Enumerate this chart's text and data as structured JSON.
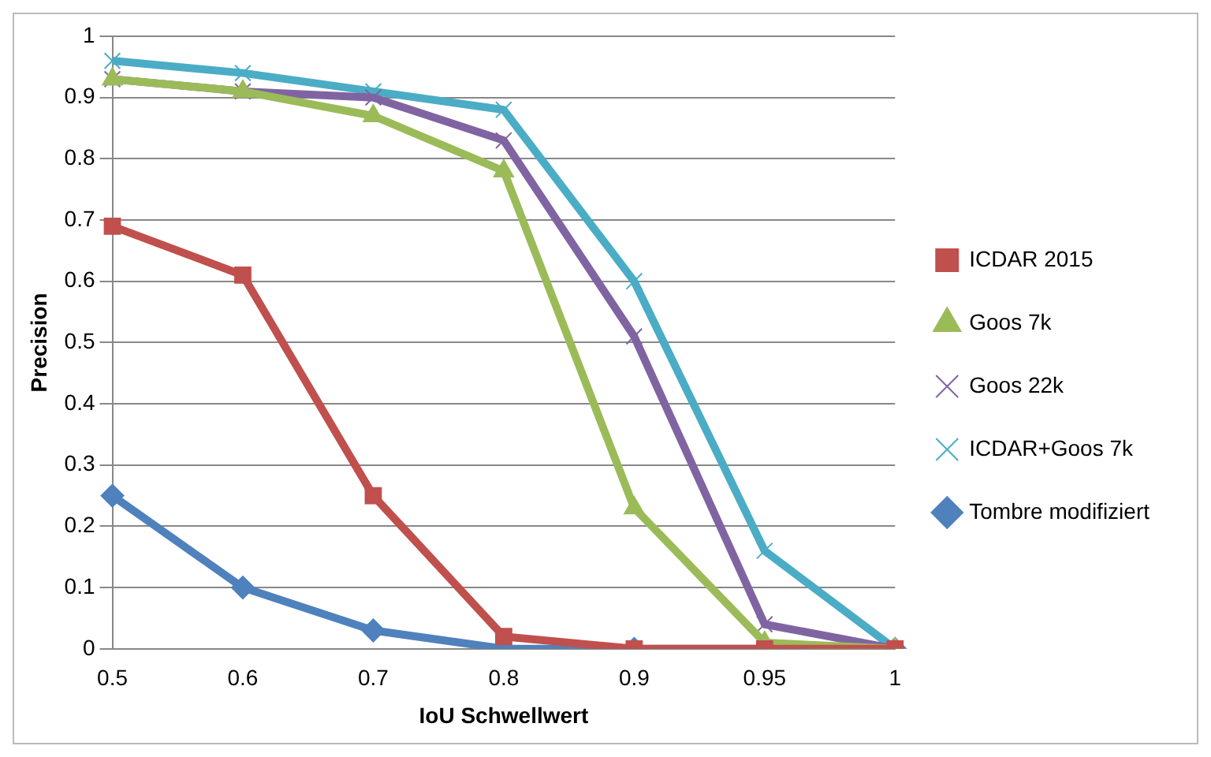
{
  "chart_data": {
    "type": "line",
    "xlabel": "IoU Schwellwert",
    "ylabel": "Precision",
    "categories": [
      "0.5",
      "0.6",
      "0.7",
      "0.8",
      "0.9",
      "0.95",
      "1"
    ],
    "series": [
      {
        "name": "ICDAR 2015",
        "color": "#c0504d",
        "marker": "square",
        "values": [
          0.69,
          0.61,
          0.25,
          0.02,
          0,
          0,
          0
        ]
      },
      {
        "name": "Goos 7k",
        "color": "#9bbb59",
        "marker": "triangle",
        "values": [
          0.93,
          0.91,
          0.87,
          0.78,
          0.23,
          0.01,
          0
        ]
      },
      {
        "name": "Goos 22k",
        "color": "#8064a2",
        "marker": "cross",
        "values": [
          0.93,
          0.91,
          0.9,
          0.83,
          0.51,
          0.04,
          0
        ]
      },
      {
        "name": "ICDAR+Goos 7k",
        "color": "#4bacc6",
        "marker": "cross",
        "values": [
          0.96,
          0.94,
          0.91,
          0.88,
          0.6,
          0.16,
          0
        ]
      },
      {
        "name": "Tombre modifiziert",
        "color": "#4f81bd",
        "marker": "diamond",
        "values": [
          0.25,
          0.1,
          0.03,
          0,
          0,
          0,
          0
        ]
      }
    ],
    "ylim": [
      0,
      1
    ],
    "yticks": [
      0,
      0.1,
      0.2,
      0.3,
      0.4,
      0.5,
      0.6,
      0.7,
      0.8,
      0.9,
      1
    ],
    "grid": "y",
    "legend": "right"
  }
}
